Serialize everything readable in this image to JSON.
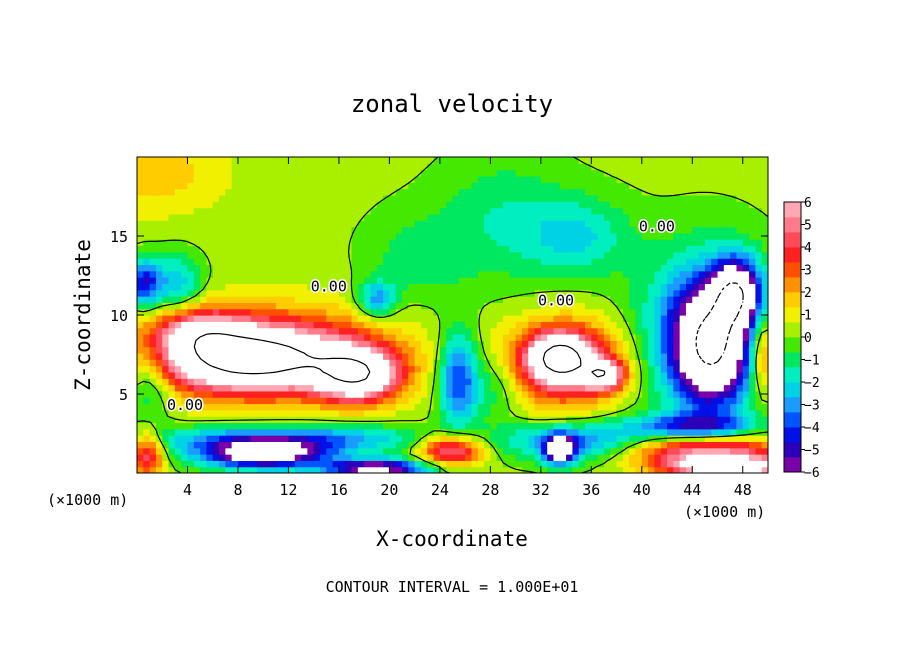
{
  "chart_data": {
    "type": "heatmap",
    "title": "zonal velocity",
    "xlabel": "X-coordinate",
    "ylabel": "Z-coordinate",
    "x_unit_label": "(×1000 m)",
    "z_unit_label": "(×1000 m)",
    "footer": "CONTOUR INTERVAL = 1.000E+01",
    "xlim": [
      0,
      50
    ],
    "ylim": [
      0,
      20
    ],
    "x_ticks": [
      4,
      8,
      12,
      16,
      20,
      24,
      28,
      32,
      36,
      40,
      44,
      48
    ],
    "y_ticks": [
      5,
      10,
      15
    ],
    "colorbar": {
      "min": -6,
      "max": 6,
      "ticks": [
        6,
        5,
        4,
        3,
        2,
        1,
        0,
        -1,
        -2,
        -3,
        -4,
        -5,
        -6
      ],
      "tick_labels": [
        "6",
        "5",
        "4",
        "3",
        "2",
        "1",
        "0",
        "−1",
        "−2",
        "−3",
        "−4",
        "−5",
        "−6"
      ],
      "colors": [
        "#7a00a8",
        "#2b00b8",
        "#0010e6",
        "#0055ff",
        "#1a9bff",
        "#00d2e6",
        "#00eec0",
        "#00e860",
        "#44e800",
        "#a8f000",
        "#f0f000",
        "#ffcc00",
        "#ff9000",
        "#ff5000",
        "#ff2020",
        "#ff4a5a",
        "#ff7a8a",
        "#ffa8b4"
      ]
    },
    "contour_labels": [
      {
        "text": "0.00",
        "x": 3.8,
        "z": 4.0
      },
      {
        "text": "0.00",
        "x": 15.2,
        "z": 11.5
      },
      {
        "text": "0.00",
        "x": 33.2,
        "z": 10.6
      },
      {
        "text": "0.00",
        "x": 41.2,
        "z": 15.3
      }
    ],
    "background_value": 0.2,
    "features": [
      {
        "x": 1,
        "z": 19,
        "rx": 6,
        "rz": 2.6,
        "v": 1.6
      },
      {
        "x": 29,
        "z": 16,
        "rx": 5,
        "rz": 4,
        "v": -1.5
      },
      {
        "x": 35,
        "z": 15,
        "rx": 4,
        "rz": 2.5,
        "v": -2.2
      },
      {
        "x": 22,
        "z": 13.5,
        "rx": 4,
        "rz": 3,
        "v": -1.2
      },
      {
        "x": 19,
        "z": 11,
        "rx": 1.5,
        "rz": 1.2,
        "v": -3.2
      },
      {
        "x": 10,
        "z": 7.6,
        "rx": 10,
        "rz": 2.8,
        "v": 5.0
      },
      {
        "x": 5,
        "z": 9.0,
        "rx": 3.5,
        "rz": 1.4,
        "v": 4.0
      },
      {
        "x": 9,
        "z": 7.2,
        "rx": 6.5,
        "rz": 1.8,
        "v": 7.5
      },
      {
        "x": 17.5,
        "z": 6.2,
        "rx": 3.2,
        "rz": 1.6,
        "v": 7.8
      },
      {
        "x": 1,
        "z": 6,
        "rx": 1.8,
        "rz": 2.5,
        "v": -2.5
      },
      {
        "x": 25.5,
        "z": 6,
        "rx": 1.6,
        "rz": 3,
        "v": -4.5
      },
      {
        "x": 28.5,
        "z": 5.5,
        "rx": 2,
        "rz": 2,
        "v": -1.5
      },
      {
        "x": 34,
        "z": 7,
        "rx": 4.5,
        "rz": 2.6,
        "v": 5.5
      },
      {
        "x": 33.5,
        "z": 7.3,
        "rx": 2.3,
        "rz": 1.4,
        "v": 7.2
      },
      {
        "x": 37,
        "z": 6.2,
        "rx": 1.5,
        "rz": 0.9,
        "v": 6.8
      },
      {
        "x": 45,
        "z": 9,
        "rx": 5,
        "rz": 5,
        "v": -4.2
      },
      {
        "x": 45.5,
        "z": 8,
        "rx": 2.8,
        "rz": 3.5,
        "v": -7.5
      },
      {
        "x": 47.5,
        "z": 11.5,
        "rx": 1.8,
        "rz": 2,
        "v": -7.2
      },
      {
        "x": 3,
        "z": 12,
        "rx": 2,
        "rz": 1.8,
        "v": -3.0
      },
      {
        "x": 0.5,
        "z": 12,
        "rx": 1.2,
        "rz": 1.5,
        "v": -4.5
      },
      {
        "x": 12,
        "z": 2.2,
        "rx": 11,
        "rz": 0.9,
        "v": -3.8
      },
      {
        "x": 10,
        "z": 1.2,
        "rx": 5,
        "rz": 0.9,
        "v": -7.5
      },
      {
        "x": 19,
        "z": 0.3,
        "rx": 4,
        "rz": 0.6,
        "v": -7
      },
      {
        "x": 0.8,
        "z": 1.2,
        "rx": 1.3,
        "rz": 1.5,
        "v": 4.5
      },
      {
        "x": 25,
        "z": 1.5,
        "rx": 2.5,
        "rz": 1,
        "v": 5.5
      },
      {
        "x": 33.5,
        "z": 1.5,
        "rx": 1.2,
        "rz": 0.9,
        "v": -7
      },
      {
        "x": 35,
        "z": 2,
        "rx": 6,
        "rz": 1.2,
        "v": -3.5
      },
      {
        "x": 44,
        "z": 3,
        "rx": 5,
        "rz": 0.8,
        "v": -3.8
      },
      {
        "x": 45,
        "z": 1.4,
        "rx": 6,
        "rz": 1,
        "v": 6
      },
      {
        "x": 47,
        "z": 0.4,
        "rx": 5,
        "rz": 0.6,
        "v": 7.5
      },
      {
        "x": 49.5,
        "z": 7.5,
        "rx": 1,
        "rz": 2.5,
        "v": 4
      }
    ]
  }
}
